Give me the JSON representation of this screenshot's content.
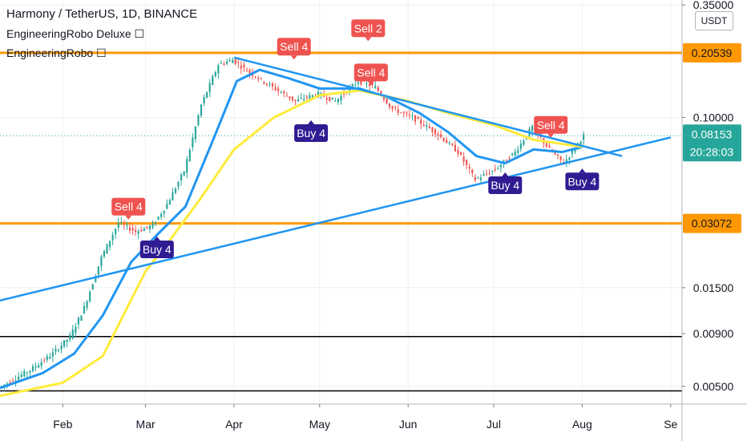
{
  "legend": {
    "title": "Harmony / TetherUS, 1D, BINANCE",
    "indicator_1": "EngineeringRobo Deluxe ☐",
    "indicator_2": "EngineeringRobo ☐"
  },
  "scale_toggle": "USDT",
  "colors": {
    "blue_line": "#2196f3",
    "yellow_line": "#ffeb3b",
    "level_line": "#ff9800",
    "black_line": "#000000",
    "sell_label": "#ef5350",
    "buy_label": "#311b92",
    "buy_label_yellow": "#ffeb3b",
    "price_tag": "#26a69a",
    "up_candle": "#26a69a",
    "down_candle": "#ef5350"
  },
  "chart_data": {
    "type": "candlestick",
    "log_scale": true,
    "grid": true,
    "x_tick_labels": [
      "Feb",
      "Mar",
      "Apr",
      "May",
      "Jun",
      "Jul",
      "Aug",
      "Se"
    ],
    "x_tick_dates": [
      "2020-02-01",
      "2020-03-01",
      "2020-04-01",
      "2020-05-01",
      "2020-06-01",
      "2020-07-01",
      "2020-08-01",
      "2020-09-01"
    ],
    "x_range": [
      "2020-01-10",
      "2020-09-05"
    ],
    "y_range": [
      0.0041,
      0.37
    ],
    "y_tick_labels": [
      "0.35000",
      "0.10000",
      "0.01500",
      "0.00900",
      "0.00500"
    ],
    "y_tick_values": [
      0.35,
      0.1,
      0.015,
      0.009,
      0.005
    ],
    "horizontal_levels": [
      {
        "value": 0.20539,
        "label": "0.20539",
        "color": "#ff9800"
      },
      {
        "value": 0.03072,
        "label": "0.03072",
        "color": "#ff9800"
      },
      {
        "value": 0.0087,
        "color": "#000000"
      },
      {
        "value": 0.00475,
        "color": "#000000"
      }
    ],
    "last_price": {
      "value": 0.08153,
      "label": "0.08153",
      "countdown": "20:28:03"
    },
    "ohlc_path": [
      [
        "2020-01-10",
        0.005
      ],
      [
        "2020-01-20",
        0.006
      ],
      [
        "2020-01-28",
        0.0072
      ],
      [
        "2020-02-03",
        0.0087
      ],
      [
        "2020-02-08",
        0.012
      ],
      [
        "2020-02-14",
        0.021
      ],
      [
        "2020-02-20",
        0.031
      ],
      [
        "2020-02-26",
        0.028
      ],
      [
        "2020-03-03",
        0.03
      ],
      [
        "2020-03-08",
        0.038
      ],
      [
        "2020-03-14",
        0.055
      ],
      [
        "2020-03-20",
        0.115
      ],
      [
        "2020-03-26",
        0.18
      ],
      [
        "2020-03-31",
        0.19
      ],
      [
        "2020-04-06",
        0.165
      ],
      [
        "2020-04-14",
        0.14
      ],
      [
        "2020-04-22",
        0.12
      ],
      [
        "2020-04-30",
        0.13
      ],
      [
        "2020-05-06",
        0.12
      ],
      [
        "2020-05-14",
        0.15
      ],
      [
        "2020-05-20",
        0.14
      ],
      [
        "2020-05-26",
        0.11
      ],
      [
        "2020-06-02",
        0.1
      ],
      [
        "2020-06-10",
        0.085
      ],
      [
        "2020-06-18",
        0.068
      ],
      [
        "2020-06-24",
        0.05
      ],
      [
        "2020-07-01",
        0.056
      ],
      [
        "2020-07-08",
        0.068
      ],
      [
        "2020-07-14",
        0.09
      ],
      [
        "2020-07-20",
        0.07
      ],
      [
        "2020-07-25",
        0.06
      ],
      [
        "2020-08-01",
        0.0815
      ]
    ],
    "series": [
      {
        "points": [
          [
            "2020-01-10",
            0.0049
          ],
          [
            "2020-01-25",
            0.0058
          ],
          [
            "2020-02-05",
            0.0072
          ],
          [
            "2020-02-15",
            0.011
          ],
          [
            "2020-02-25",
            0.02
          ],
          [
            "2020-03-05",
            0.027
          ],
          [
            "2020-03-15",
            0.037
          ],
          [
            "2020-03-25",
            0.08
          ],
          [
            "2020-04-02",
            0.15
          ],
          [
            "2020-04-10",
            0.17
          ],
          [
            "2020-04-20",
            0.155
          ],
          [
            "2020-05-01",
            0.138
          ],
          [
            "2020-05-15",
            0.138
          ],
          [
            "2020-05-25",
            0.125
          ],
          [
            "2020-06-05",
            0.105
          ],
          [
            "2020-06-15",
            0.085
          ],
          [
            "2020-06-25",
            0.065
          ],
          [
            "2020-07-05",
            0.06
          ],
          [
            "2020-07-15",
            0.07
          ],
          [
            "2020-07-25",
            0.068
          ],
          [
            "2020-08-01",
            0.072
          ]
        ],
        "color": "#2196f3"
      },
      {
        "points": [
          [
            "2020-01-10",
            0.0045
          ],
          [
            "2020-02-01",
            0.0052
          ],
          [
            "2020-02-15",
            0.007
          ],
          [
            "2020-03-01",
            0.018
          ],
          [
            "2020-03-10",
            0.026
          ],
          [
            "2020-03-20",
            0.04
          ],
          [
            "2020-04-01",
            0.07
          ],
          [
            "2020-04-15",
            0.1
          ],
          [
            "2020-05-01",
            0.128
          ],
          [
            "2020-05-15",
            0.135
          ],
          [
            "2020-06-01",
            0.12
          ],
          [
            "2020-06-15",
            0.105
          ],
          [
            "2020-07-01",
            0.092
          ],
          [
            "2020-07-15",
            0.078
          ],
          [
            "2020-08-01",
            0.072
          ]
        ],
        "color": "#ffeb3b"
      },
      {
        "points": [
          [
            "2020-01-10",
            0.013
          ],
          [
            "2020-09-01",
            0.08
          ]
        ],
        "color": "#2196f3"
      },
      {
        "points": [
          [
            "2020-04-01",
            0.195
          ],
          [
            "2020-08-15",
            0.065
          ]
        ],
        "color": "#2196f3"
      }
    ],
    "signals": [
      {
        "label": "Sell 4",
        "date": "2020-02-24",
        "price": 0.037,
        "kind": "sell"
      },
      {
        "label": "Sell 4",
        "date": "2020-04-22",
        "price": 0.22,
        "kind": "sell"
      },
      {
        "label": "Sell 2",
        "date": "2020-05-18",
        "price": 0.27,
        "kind": "sell"
      },
      {
        "label": "Sell 4",
        "date": "2020-05-19",
        "price": 0.165,
        "kind": "sell"
      },
      {
        "label": "Sell 4",
        "date": "2020-07-21",
        "price": 0.092,
        "kind": "sell"
      },
      {
        "label": "Buy 4",
        "date": "2020-03-05",
        "price": 0.023,
        "kind": "buy"
      },
      {
        "label": "Buy 4",
        "date": "2020-04-28",
        "price": 0.084,
        "kind": "buy"
      },
      {
        "label": "Buy 4",
        "date": "2020-07-05",
        "price": 0.047,
        "kind": "buy"
      },
      {
        "label": "Buy 4",
        "date": "2020-08-01",
        "price": 0.049,
        "kind": "buy"
      }
    ]
  }
}
